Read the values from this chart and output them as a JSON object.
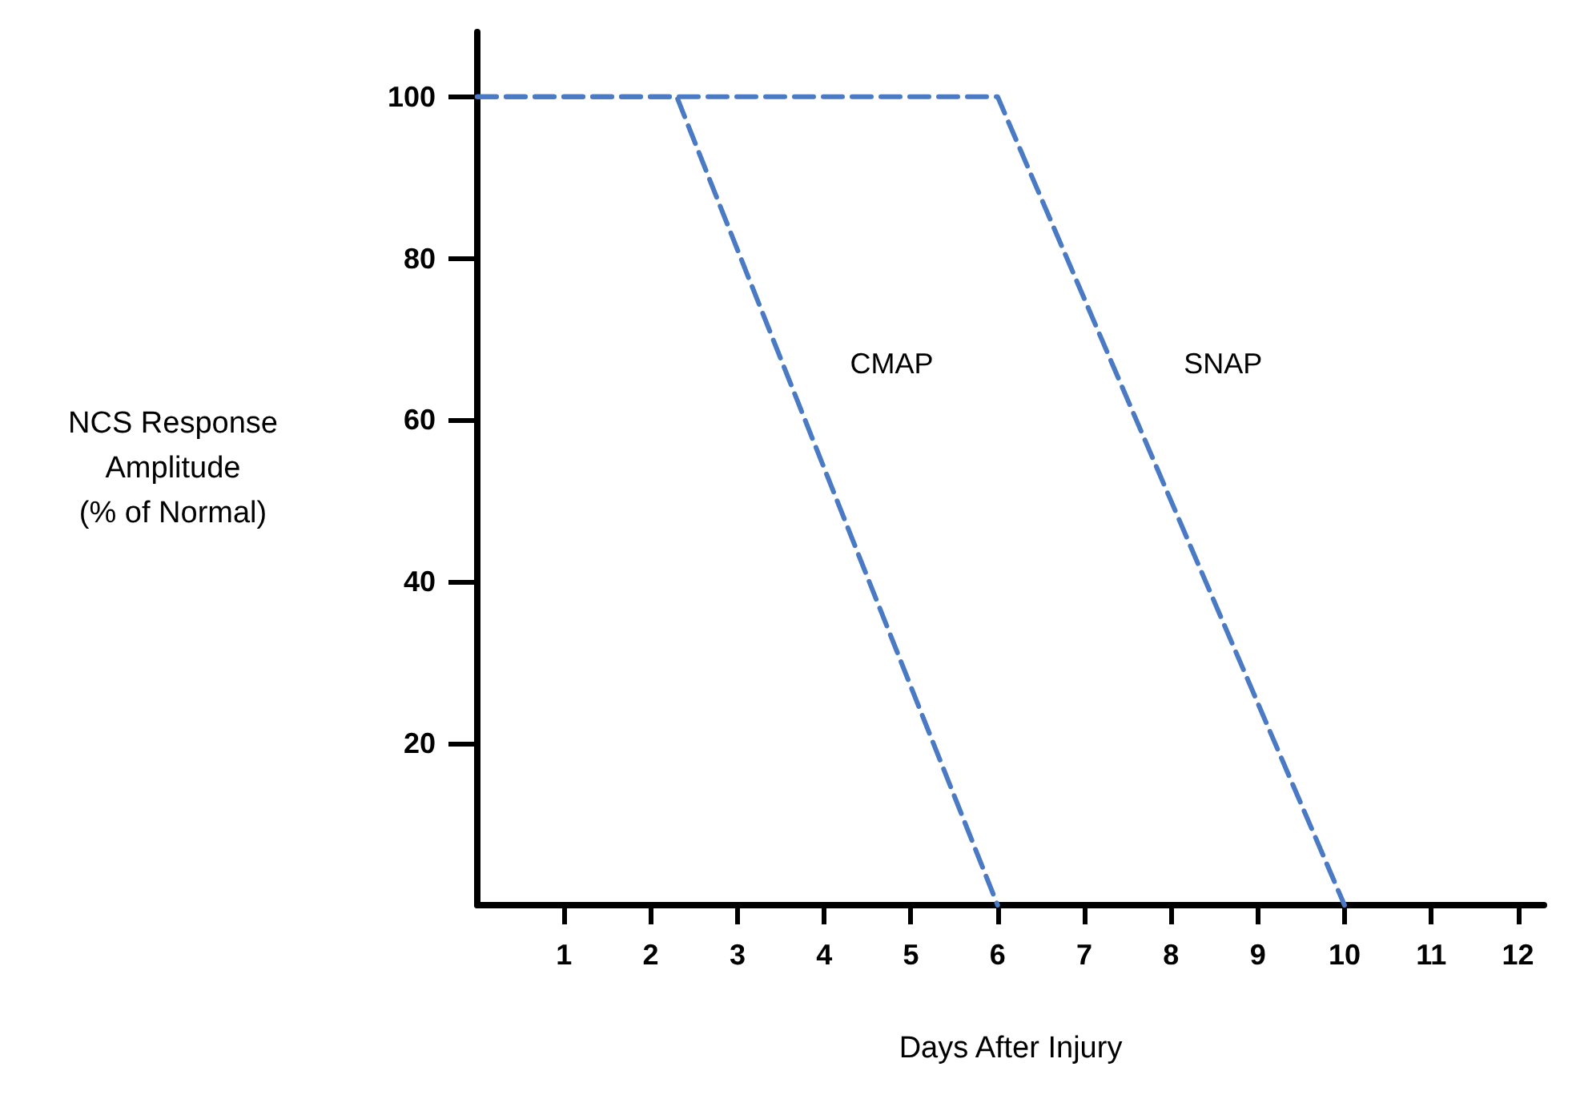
{
  "chart_data": {
    "type": "line",
    "xlabel": "Days After Injury",
    "ylabel": "NCS Response\nAmplitude\n(% of Normal)",
    "xlim": [
      0,
      12.3
    ],
    "xticks": [
      1,
      2,
      3,
      4,
      5,
      6,
      7,
      8,
      9,
      10,
      11,
      12
    ],
    "ylim": [
      0,
      108
    ],
    "yticks": [
      20,
      40,
      60,
      80,
      100
    ],
    "series": [
      {
        "name": "CMAP",
        "color": "#4a7ac4",
        "x": [
          0,
          2.3,
          6
        ],
        "values": [
          100,
          100,
          0
        ]
      },
      {
        "name": "SNAP",
        "color": "#4a7ac4",
        "x": [
          0,
          6,
          10
        ],
        "values": [
          100,
          100,
          0
        ]
      }
    ],
    "line_style": "dashed",
    "marker": "none",
    "grid": false,
    "legend": false
  }
}
